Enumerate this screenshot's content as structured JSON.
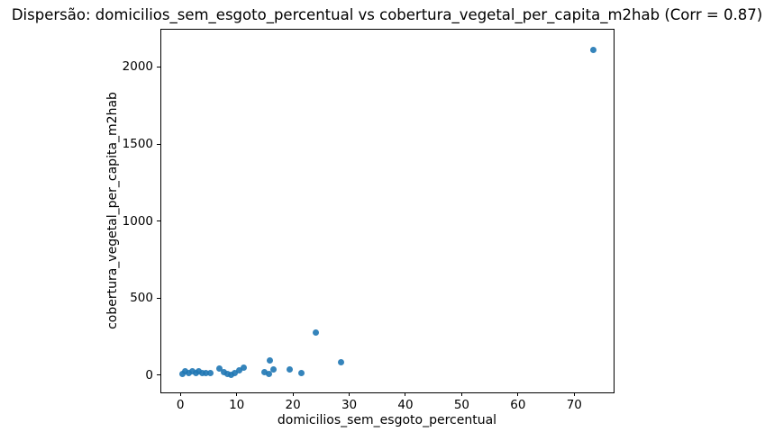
{
  "chart_data": {
    "type": "scatter",
    "title": "Dispersão: domicilios_sem_esgoto_percentual vs cobertura_vegetal_per_capita_m2hab (Corr = 0.87)",
    "xlabel": "domicilios_sem_esgoto_percentual",
    "ylabel": "cobertura_vegetal_per_capita_m2hab",
    "correlation": 0.87,
    "marker_color": "#1f77b4",
    "grid": false,
    "legend": null,
    "xlim": [
      -3.4,
      77.0
    ],
    "ylim": [
      -112,
      2242
    ],
    "xticks": [
      0,
      10,
      20,
      30,
      40,
      50,
      60,
      70
    ],
    "yticks": [
      0,
      500,
      1000,
      1500,
      2000
    ],
    "points": [
      [
        0.4,
        10
      ],
      [
        0.8,
        28
      ],
      [
        1.5,
        15
      ],
      [
        2.1,
        28
      ],
      [
        2.7,
        12
      ],
      [
        3.3,
        24
      ],
      [
        3.9,
        16
      ],
      [
        4.6,
        12
      ],
      [
        5.4,
        14
      ],
      [
        7.0,
        40
      ],
      [
        7.7,
        18
      ],
      [
        8.3,
        8
      ],
      [
        9.0,
        2
      ],
      [
        9.7,
        14
      ],
      [
        10.4,
        30
      ],
      [
        11.2,
        50
      ],
      [
        14.9,
        20
      ],
      [
        15.7,
        6
      ],
      [
        15.9,
        97
      ],
      [
        16.5,
        35
      ],
      [
        19.5,
        35
      ],
      [
        21.5,
        11
      ],
      [
        24.1,
        276
      ],
      [
        28.5,
        85
      ],
      [
        73.4,
        2110
      ]
    ]
  }
}
